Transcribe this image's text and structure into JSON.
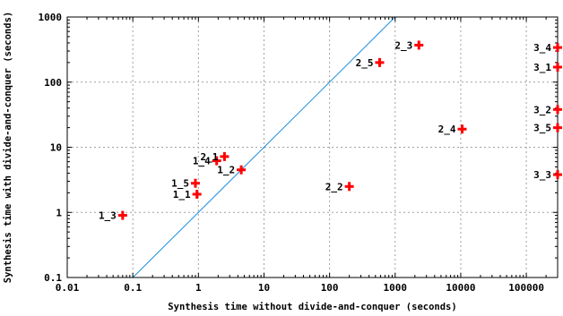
{
  "chart_data": {
    "type": "scatter",
    "xlabel": "Synthesis time without divide-and-conquer (seconds)",
    "ylabel": "Synthesis time with divide-and-conquer (seconds)",
    "x_scale": "log",
    "y_scale": "log",
    "xlim": [
      0.01,
      300000
    ],
    "ylim": [
      0.1,
      1000
    ],
    "x_ticks": [
      {
        "value": 0.01,
        "label": "0.01"
      },
      {
        "value": 0.1,
        "label": "0.1"
      },
      {
        "value": 1,
        "label": "1"
      },
      {
        "value": 10,
        "label": "10"
      },
      {
        "value": 100,
        "label": "100"
      },
      {
        "value": 1000,
        "label": "1000"
      },
      {
        "value": 10000,
        "label": "10000"
      },
      {
        "value": 100000,
        "label": "100000"
      }
    ],
    "y_ticks": [
      {
        "value": 0.1,
        "label": "0.1"
      },
      {
        "value": 1,
        "label": "1"
      },
      {
        "value": 10,
        "label": "10"
      },
      {
        "value": 100,
        "label": "100"
      },
      {
        "value": 1000,
        "label": "1000"
      }
    ],
    "grid": true,
    "diagonal": {
      "from": [
        0.1,
        0.1
      ],
      "to": [
        1000,
        1000
      ],
      "color": "#1f8fe0"
    },
    "marker_color": "#ff0000",
    "points": [
      {
        "label": "1_3",
        "x": 0.07,
        "y": 0.9
      },
      {
        "label": "1_1",
        "x": 0.95,
        "y": 1.9
      },
      {
        "label": "1_5",
        "x": 0.9,
        "y": 2.8
      },
      {
        "label": "1_2",
        "x": 4.5,
        "y": 4.5
      },
      {
        "label": "1_4",
        "x": 1.9,
        "y": 6.2
      },
      {
        "label": "2_1",
        "x": 2.5,
        "y": 7.2
      },
      {
        "label": "2_2",
        "x": 200,
        "y": 2.5
      },
      {
        "label": "2_5",
        "x": 580,
        "y": 200
      },
      {
        "label": "2_3",
        "x": 2300,
        "y": 370
      },
      {
        "label": "2_4",
        "x": 10500,
        "y": 19
      },
      {
        "label": "3_4",
        "x": 300000,
        "y": 340
      },
      {
        "label": "3_1",
        "x": 300000,
        "y": 170
      },
      {
        "label": "3_2",
        "x": 300000,
        "y": 38
      },
      {
        "label": "3_5",
        "x": 300000,
        "y": 20
      },
      {
        "label": "3_3",
        "x": 300000,
        "y": 3.8
      }
    ]
  }
}
